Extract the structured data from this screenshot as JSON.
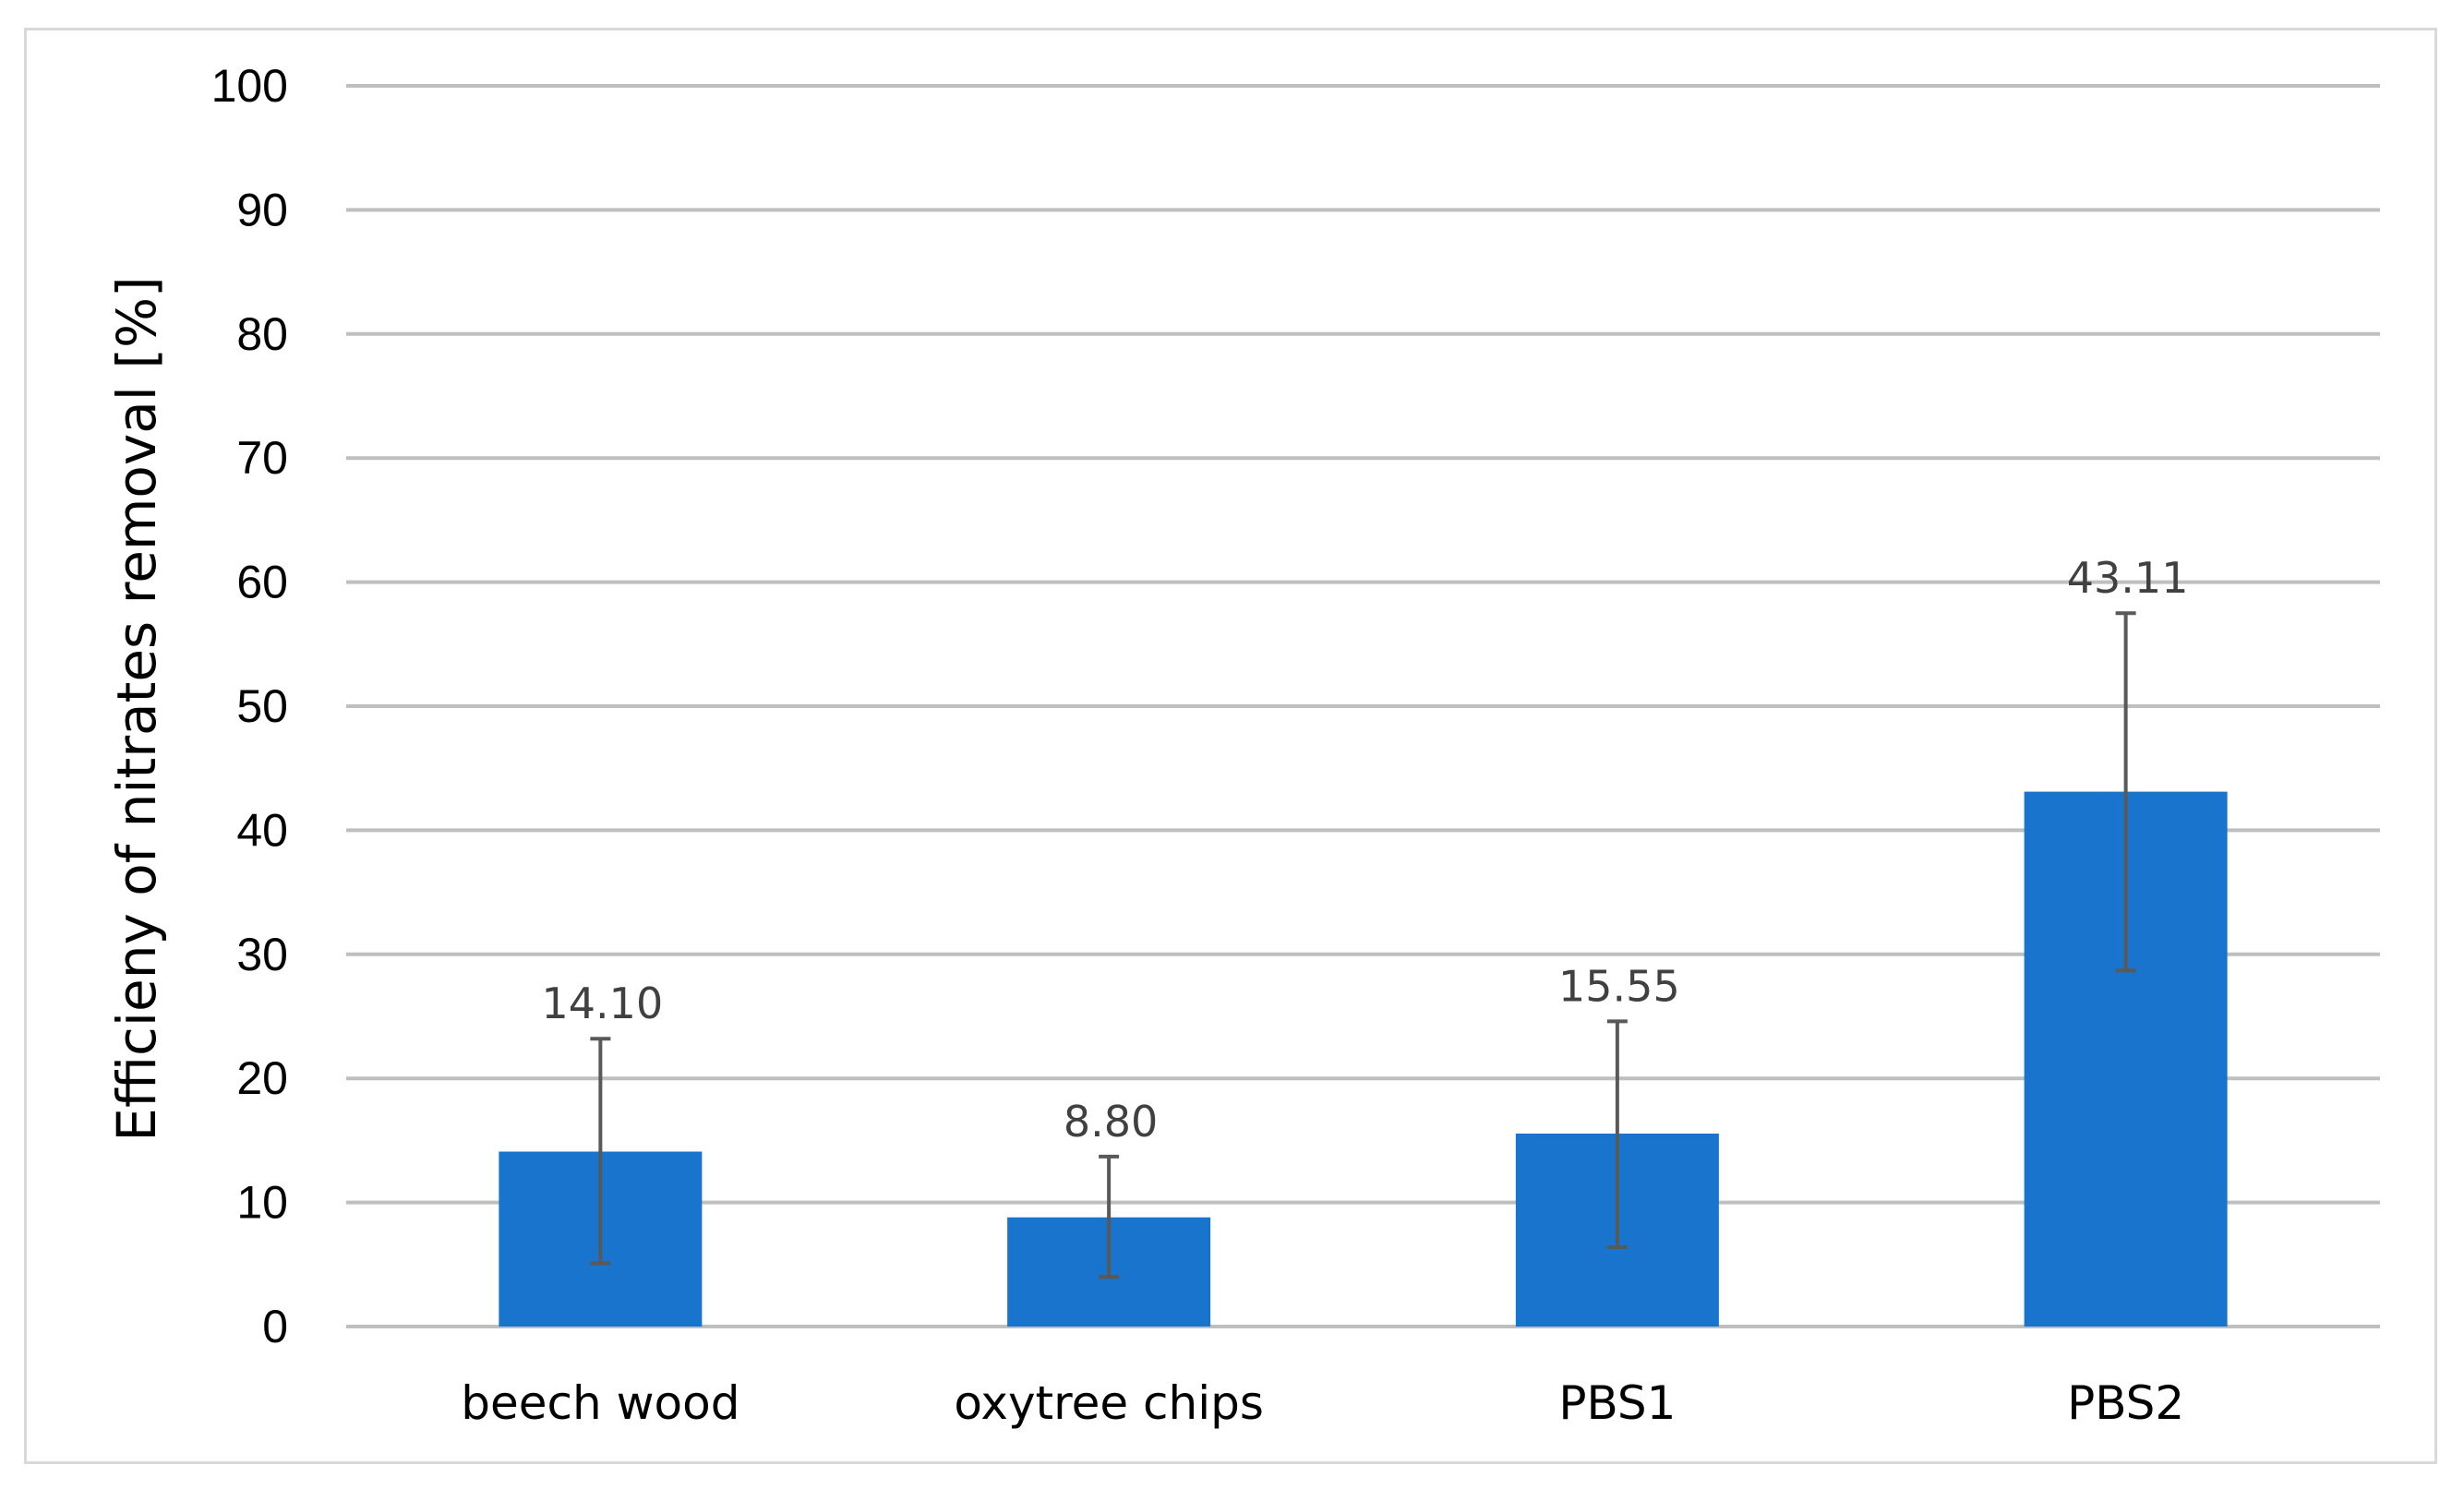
{
  "chart_data": {
    "type": "bar",
    "title": "",
    "xlabel": "",
    "ylabel": "Efficieny of nitrates removal [%]",
    "ylim": [
      0,
      100
    ],
    "yticks": [
      0,
      10,
      20,
      30,
      40,
      50,
      60,
      70,
      80,
      90,
      100
    ],
    "ytick_labels": [
      "0",
      "10",
      "20",
      "30",
      "40",
      "50",
      "60",
      "70",
      "80",
      "90",
      "100"
    ],
    "grid": true,
    "legend": "none",
    "categories": [
      "beech wood",
      "oxytree chips",
      "PBS1",
      "PBS2"
    ],
    "values": [
      14.1,
      8.8,
      15.55,
      43.11
    ],
    "value_labels": [
      "14.10",
      "8.80",
      "15.55",
      "43.11"
    ],
    "error_low": [
      5.1,
      4.0,
      6.4,
      28.7
    ],
    "error_high": [
      23.2,
      13.7,
      24.6,
      57.5
    ],
    "bar_color": "#1874CD",
    "grid_color": "#bfbfbf",
    "error_bar_color": "#595959"
  }
}
